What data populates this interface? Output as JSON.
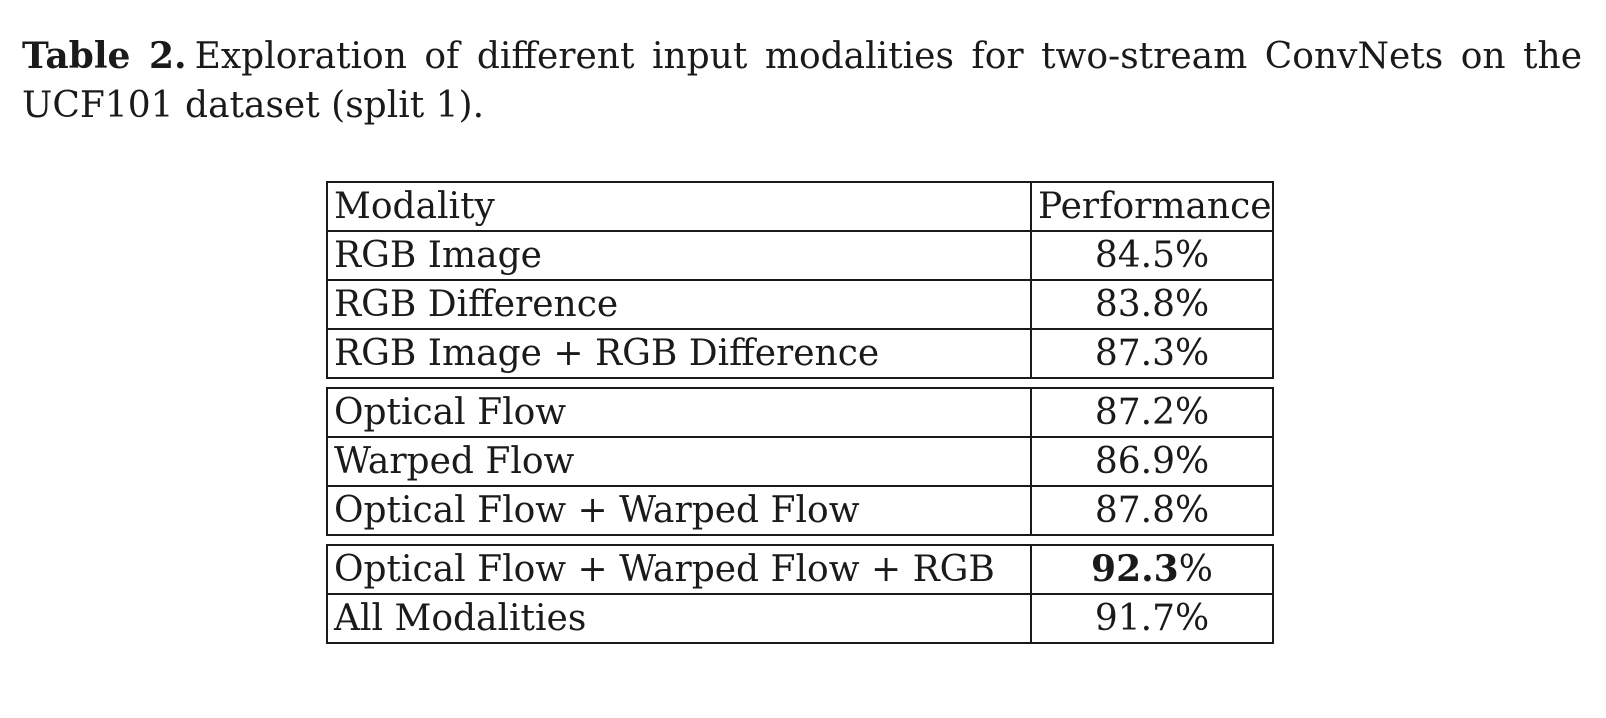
{
  "caption": {
    "label": "Table 2.",
    "text": "Exploration of different input modalities for two-stream ConvNets on the UCF101 dataset (split 1)."
  },
  "table": {
    "headers": [
      "Modality",
      "Performance"
    ],
    "groups": [
      [
        {
          "modality": "RGB Image",
          "performance": "84.5%"
        },
        {
          "modality": "RGB Difference",
          "performance": "83.8%"
        },
        {
          "modality": "RGB Image + RGB Difference",
          "performance": "87.3%"
        }
      ],
      [
        {
          "modality": "Optical Flow",
          "performance": "87.2%"
        },
        {
          "modality": "Warped Flow",
          "performance": "86.9%"
        },
        {
          "modality": "Optical Flow + Warped Flow",
          "performance": "87.8%"
        }
      ],
      [
        {
          "modality": "Optical Flow + Warped Flow + RGB",
          "performance": "92.3%",
          "best": true
        },
        {
          "modality": "All Modalities",
          "performance": "91.7%"
        }
      ]
    ]
  }
}
